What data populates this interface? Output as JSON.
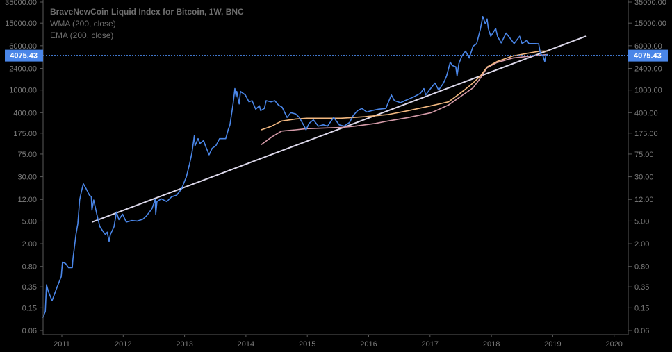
{
  "legend": {
    "title": "BraveNewCoin Liquid Index for Bitcoin, 1W, BNC",
    "indicator_1": "WMA (200, close)",
    "indicator_2": "EMA (200, close)"
  },
  "colors": {
    "background": "#000000",
    "price": "#4a86e8",
    "wma": "#f2b880",
    "ema": "#d59ba9",
    "trendline": "#dcd8ea",
    "axis": "#5a5a5a",
    "axis_text": "#7d7d7d",
    "last_price_badge": "#4a86e8"
  },
  "chart_data": {
    "type": "line",
    "title": "BraveNewCoin Liquid Index for Bitcoin, 1W, BNC",
    "y_scale": "log",
    "ylim": [
      0.06,
      35000
    ],
    "xlim": [
      2010.7,
      2020.25
    ],
    "grid": false,
    "legend_placement": "top-left",
    "x_ticks": [
      "2011",
      "2012",
      "2013",
      "2014",
      "2015",
      "2016",
      "2017",
      "2018",
      "2019",
      "2020"
    ],
    "y_ticks": [
      "35000.00",
      "15000.00",
      "6000.00",
      "2400.00",
      "1000.00",
      "400.00",
      "175.00",
      "75.00",
      "30.00",
      "12.00",
      "5.00",
      "2.00",
      "0.80",
      "0.35",
      "0.15",
      "0.06"
    ],
    "last_price": "4075.43",
    "series": [
      {
        "name": "BraveNewCoin Liquid Index for Bitcoin",
        "key": "price",
        "x": [
          2010.69,
          2010.73,
          2010.75,
          2010.78,
          2010.84,
          2010.92,
          2010.99,
          2011.01,
          2011.06,
          2011.11,
          2011.17,
          2011.18,
          2011.23,
          2011.26,
          2011.29,
          2011.32,
          2011.35,
          2011.39,
          2011.45,
          2011.48,
          2011.49,
          2011.52,
          2011.57,
          2011.62,
          2011.67,
          2011.71,
          2011.74,
          2011.77,
          2011.79,
          2011.85,
          2011.89,
          2011.93,
          2011.99,
          2012.05,
          2012.14,
          2012.23,
          2012.32,
          2012.38,
          2012.47,
          2012.52,
          2012.53,
          2012.55,
          2012.62,
          2012.71,
          2012.79,
          2012.87,
          2012.95,
          2013.03,
          2013.08,
          2013.12,
          2013.16,
          2013.17,
          2013.22,
          2013.25,
          2013.31,
          2013.34,
          2013.4,
          2013.45,
          2013.51,
          2013.57,
          2013.67,
          2013.71,
          2013.74,
          2013.79,
          2013.82,
          2013.84,
          2013.85,
          2013.89,
          2013.91,
          2013.99,
          2014.05,
          2014.1,
          2014.16,
          2014.22,
          2014.24,
          2014.3,
          2014.33,
          2014.41,
          2014.47,
          2014.53,
          2014.59,
          2014.67,
          2014.73,
          2014.81,
          2014.87,
          2014.95,
          2014.98,
          2015.03,
          2015.1,
          2015.18,
          2015.26,
          2015.33,
          2015.43,
          2015.52,
          2015.6,
          2015.69,
          2015.75,
          2015.82,
          2015.89,
          2015.97,
          2016.05,
          2016.16,
          2016.28,
          2016.37,
          2016.42,
          2016.52,
          2016.59,
          2016.73,
          2016.84,
          2016.9,
          2016.93,
          2016.99,
          2017.08,
          2017.14,
          2017.22,
          2017.27,
          2017.33,
          2017.36,
          2017.42,
          2017.44,
          2017.47,
          2017.52,
          2017.58,
          2017.64,
          2017.7,
          2017.76,
          2017.82,
          2017.86,
          2017.9,
          2017.93,
          2017.95,
          2017.99,
          2018.07,
          2018.1,
          2018.16,
          2018.24,
          2018.32,
          2018.37,
          2018.46,
          2018.5,
          2018.58,
          2018.61,
          2018.72,
          2018.77,
          2018.8,
          2018.84,
          2018.87,
          2018.89,
          2018.92
        ],
        "y": [
          0.1,
          0.13,
          0.38,
          0.29,
          0.2,
          0.34,
          0.53,
          0.95,
          0.9,
          0.76,
          0.76,
          1.06,
          2.9,
          4.5,
          11.7,
          16.8,
          22.6,
          19.1,
          14.2,
          13.4,
          7.8,
          11.7,
          6.6,
          4.0,
          3.3,
          2.9,
          3.2,
          2.2,
          2.9,
          4.0,
          7.2,
          5.3,
          6.6,
          4.8,
          5.1,
          5.0,
          5.4,
          6.2,
          8.3,
          12,
          6.6,
          11.0,
          12.3,
          11,
          13.4,
          14.2,
          18.3,
          30,
          50,
          79,
          160,
          105,
          140,
          115,
          130,
          105,
          73,
          95,
          105,
          140,
          140,
          200,
          245,
          570,
          1060,
          755,
          945,
          570,
          945,
          820,
          620,
          650,
          460,
          530,
          435,
          475,
          650,
          620,
          650,
          545,
          500,
          330,
          400,
          380,
          330,
          232,
          200,
          260,
          300,
          232,
          245,
          232,
          330,
          245,
          232,
          270,
          360,
          435,
          475,
          410,
          435,
          460,
          475,
          820,
          650,
          600,
          650,
          755,
          870,
          1060,
          820,
          1000,
          1325,
          1000,
          1325,
          1760,
          3090,
          2700,
          2550,
          1760,
          2900,
          3960,
          4830,
          3640,
          5850,
          6530,
          11650,
          19500,
          14600,
          17700,
          12000,
          8800,
          12000,
          8800,
          6710,
          10000,
          7700,
          6530,
          8800,
          6530,
          7500,
          6530,
          6530,
          6500,
          4320,
          3960,
          3150,
          4200,
          4075.43
        ]
      },
      {
        "name": "WMA (200, close)",
        "key": "wma",
        "x": [
          2014.25,
          2014.42,
          2014.58,
          2014.81,
          2014.99,
          2015.55,
          2015.94,
          2016.31,
          2016.65,
          2017.02,
          2017.3,
          2017.41,
          2017.56,
          2017.7,
          2017.82,
          2017.93,
          2018.09,
          2018.35,
          2018.66,
          2018.8,
          2018.92
        ],
        "y": [
          200,
          232,
          285,
          310,
          320,
          320,
          340,
          370,
          435,
          530,
          620,
          755,
          1000,
          1325,
          1760,
          2540,
          3150,
          3960,
          4560,
          4830,
          4830
        ]
      },
      {
        "name": "EMA (200, close)",
        "key": "ema",
        "x": [
          2014.25,
          2014.42,
          2014.58,
          2014.81,
          2014.99,
          2015.55,
          2015.78,
          2016.12,
          2016.31,
          2016.65,
          2017.02,
          2017.3,
          2017.52,
          2017.7,
          2017.82,
          2017.93,
          2018.09,
          2018.35,
          2018.66,
          2018.92
        ],
        "y": [
          110,
          150,
          190,
          200,
          210,
          220,
          232,
          260,
          285,
          330,
          400,
          545,
          800,
          1090,
          1610,
          2470,
          3030,
          3640,
          3960,
          4200
        ]
      },
      {
        "key": "trendline",
        "x": [
          2011.49,
          2019.54
        ],
        "y": [
          4.8,
          8800
        ]
      }
    ]
  }
}
